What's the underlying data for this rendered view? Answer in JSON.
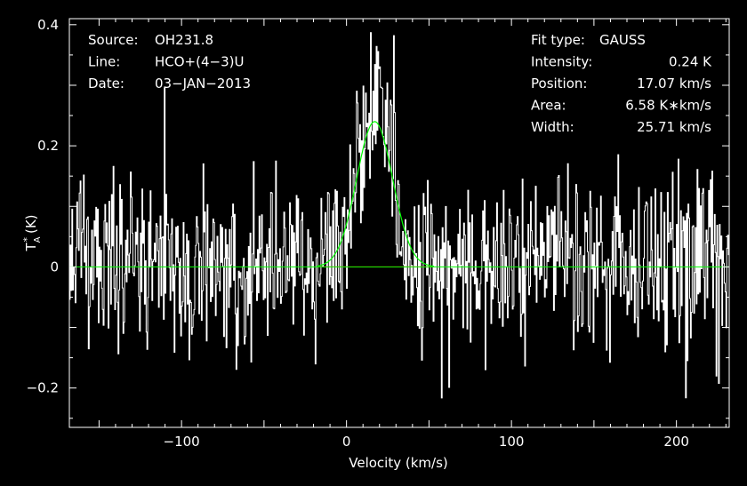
{
  "chart_data": {
    "type": "line",
    "xlabel": "Velocity (km/s)",
    "ylabel": "T",
    "ylabel_sub": "A",
    "ylabel_sup": "*",
    "ylabel_unit": "(K)",
    "xlim": [
      -168,
      232
    ],
    "ylim": [
      -0.265,
      0.41
    ],
    "xticks": [
      -100,
      0,
      100,
      200
    ],
    "xtick_labels": [
      "−100",
      "0",
      "100",
      "200"
    ],
    "yticks": [
      -0.2,
      0,
      0.2,
      0.4
    ],
    "ytick_labels": [
      "−0.2",
      "0",
      "0.2",
      "0.4"
    ],
    "grid": false,
    "colors": {
      "background": "#000000",
      "spectrum": "#ffffff",
      "fit": "#00ff00",
      "residual": "#ff0000",
      "axes": "#ffffff"
    },
    "header_left": [
      {
        "label": "Source:",
        "value": "OH231.8"
      },
      {
        "label": "Line:",
        "value": "HCO+(4−3)U"
      },
      {
        "label": "Date:",
        "value": "03−JAN−2013"
      }
    ],
    "header_right": [
      {
        "label": "Fit type:",
        "value": "GAUSS"
      },
      {
        "label": "Intensity:",
        "value": "0.24 K"
      },
      {
        "label": "Position:",
        "value": "17.07 km/s"
      },
      {
        "label": "Area:",
        "value": "6.58 K∗km/s"
      },
      {
        "label": "Width:",
        "value": "25.71 km/s"
      }
    ],
    "fit": {
      "amplitude": 0.24,
      "center": 17.07,
      "fwhm": 25.71
    },
    "residual_range": [
      -18,
      53
    ],
    "spectrum_noise_sigma": 0.075,
    "spectrum_channel_step": 0.5,
    "series": [
      {
        "name": "",
        "role": "spectrum",
        "style": "histogram"
      },
      {
        "name": "",
        "role": "gaussian-fit",
        "style": "line"
      }
    ]
  }
}
